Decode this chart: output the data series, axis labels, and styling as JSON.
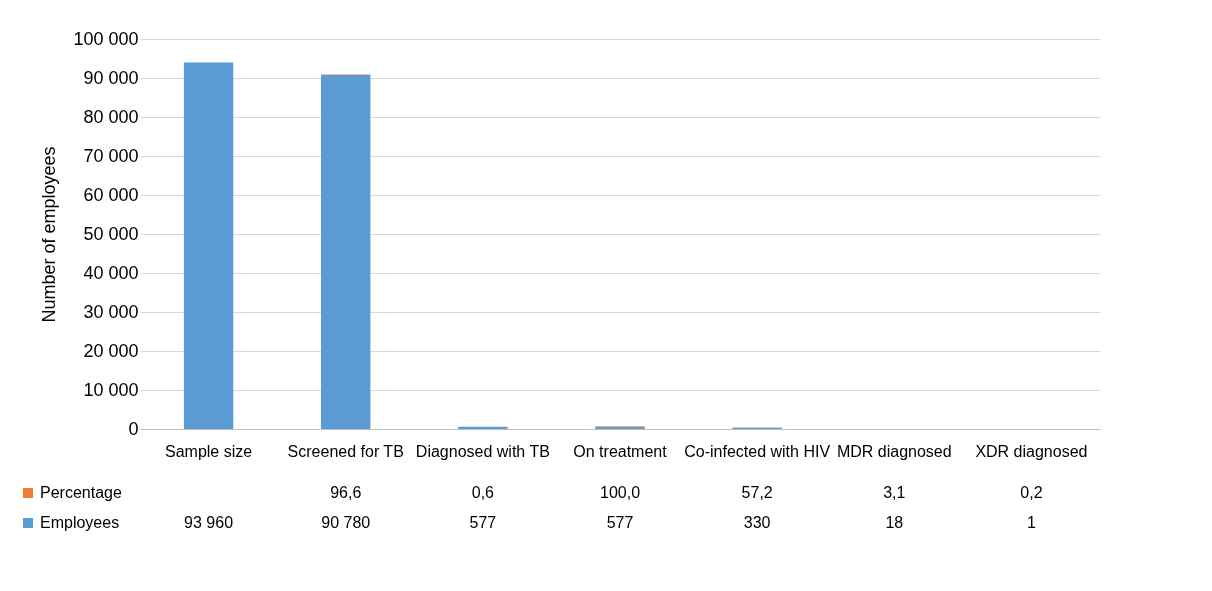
{
  "chart_data": {
    "type": "bar",
    "stacked": true,
    "ylabel": "Number of employees",
    "categories": [
      "Sample size",
      "Screened for TB",
      "Diagnosed with TB",
      "On treatment",
      "Co-infected with HIV",
      "MDR diagnosed",
      "XDR diagnosed"
    ],
    "series": [
      {
        "name": "Employees",
        "color": "#5b9bd5",
        "values": [
          93960,
          90780,
          577,
          577,
          330,
          18,
          1
        ],
        "value_labels": [
          "93 960",
          "90 780",
          "577",
          "577",
          "330",
          "18",
          "1"
        ]
      },
      {
        "name": "Percentage",
        "color": "#ed7d31",
        "values": [
          null,
          96.6,
          0.6,
          100.0,
          57.2,
          3.1,
          0.2
        ],
        "value_labels": [
          null,
          "96,6",
          "0,6",
          "100,0",
          "57,2",
          "3,1",
          "0,2"
        ]
      }
    ],
    "ylim": [
      0,
      100000
    ],
    "yticks": [
      {
        "value": 0,
        "label": "0"
      },
      {
        "value": 10000,
        "label": "10 000"
      },
      {
        "value": 20000,
        "label": "20 000"
      },
      {
        "value": 30000,
        "label": "30 000"
      },
      {
        "value": 40000,
        "label": "40 000"
      },
      {
        "value": 50000,
        "label": "50 000"
      },
      {
        "value": 60000,
        "label": "60 000"
      },
      {
        "value": 70000,
        "label": "70 000"
      },
      {
        "value": 80000,
        "label": "80 000"
      },
      {
        "value": 90000,
        "label": "90 000"
      },
      {
        "value": 100000,
        "label": "100 000"
      }
    ],
    "grid": "y",
    "legend": "bottom left"
  }
}
